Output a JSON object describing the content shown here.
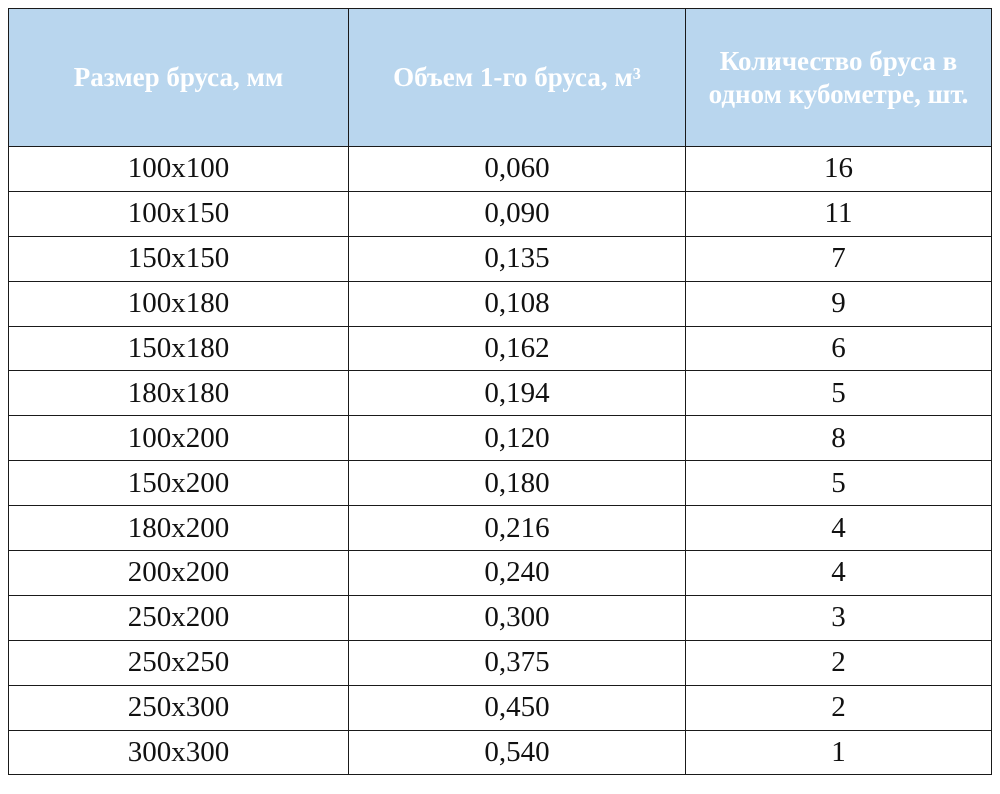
{
  "table": {
    "headers": [
      "Размер бруса, мм",
      "Объем 1-го бруса, м³",
      "Количество бруса в одном кубометре, шт."
    ],
    "rows": [
      [
        "100х100",
        "0,060",
        "16"
      ],
      [
        "100х150",
        "0,090",
        "11"
      ],
      [
        "150х150",
        "0,135",
        "7"
      ],
      [
        "100х180",
        "0,108",
        "9"
      ],
      [
        "150х180",
        "0,162",
        "6"
      ],
      [
        "180х180",
        "0,194",
        "5"
      ],
      [
        "100х200",
        "0,120",
        "8"
      ],
      [
        "150х200",
        "0,180",
        "5"
      ],
      [
        "180х200",
        "0,216",
        "4"
      ],
      [
        "200х200",
        "0,240",
        "4"
      ],
      [
        "250х200",
        "0,300",
        "3"
      ],
      [
        "250х250",
        "0,375",
        "2"
      ],
      [
        "250х300",
        "0,450",
        "2"
      ],
      [
        "300х300",
        "0,540",
        "1"
      ]
    ]
  },
  "colors": {
    "header_background": "#b9d6ee",
    "header_text": "#ffffff",
    "border": "#1a1a1a"
  }
}
